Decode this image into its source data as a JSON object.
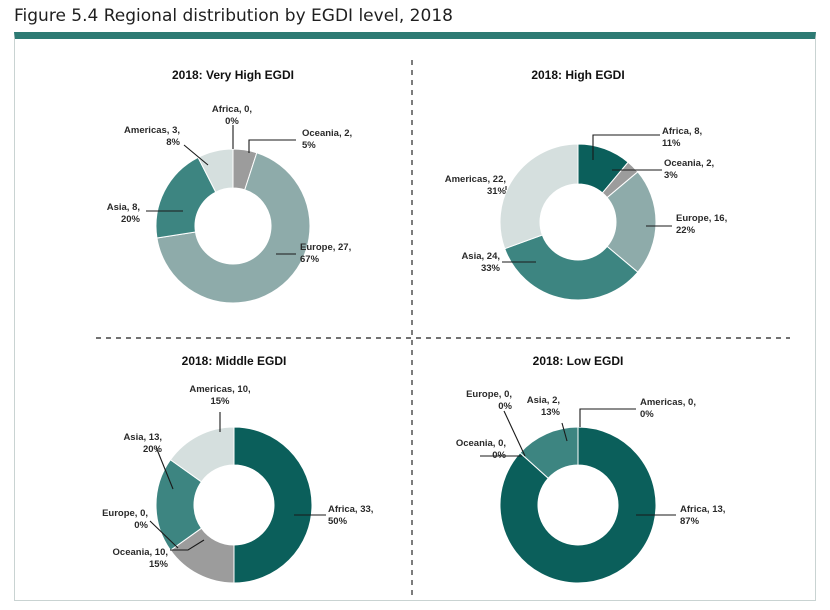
{
  "figure": {
    "title": "Figure 5.4 Regional distribution by EGDI level, 2018"
  },
  "colors": {
    "Africa": "#0b5f5b",
    "Oceania": "#9c9c9c",
    "Europe": "#8eabaa",
    "Asia": "#3d8581",
    "Americas": "#d5dfde",
    "frame_accent": "#2d7a73"
  },
  "chart_data": [
    {
      "type": "pie",
      "variant": "donut",
      "title": "2018: Very High EGDI",
      "order": [
        "Africa",
        "Oceania",
        "Europe",
        "Asia",
        "Americas"
      ],
      "categories": [
        "Africa",
        "Oceania",
        "Europe",
        "Asia",
        "Americas"
      ],
      "values": [
        0,
        2,
        27,
        8,
        3
      ],
      "labels": [
        {
          "name": "Africa",
          "line1": "Africa, 0,",
          "line2": "0%"
        },
        {
          "name": "Oceania",
          "line1": "Oceania, 2,",
          "line2": "5%"
        },
        {
          "name": "Europe",
          "line1": "Europe, 27,",
          "line2": "67%"
        },
        {
          "name": "Asia",
          "line1": "Asia, 8,",
          "line2": "20%"
        },
        {
          "name": "Americas",
          "line1": "Americas, 3,",
          "line2": "8%"
        }
      ]
    },
    {
      "type": "pie",
      "variant": "donut",
      "title": "2018: High EGDI",
      "categories": [
        "Africa",
        "Oceania",
        "Europe",
        "Asia",
        "Americas"
      ],
      "values": [
        8,
        2,
        16,
        24,
        22
      ],
      "labels": [
        {
          "name": "Africa",
          "line1": "Africa, 8,",
          "line2": "11%"
        },
        {
          "name": "Oceania",
          "line1": "Oceania, 2,",
          "line2": "3%"
        },
        {
          "name": "Europe",
          "line1": "Europe, 16,",
          "line2": "22%"
        },
        {
          "name": "Asia",
          "line1": "Asia, 24,",
          "line2": "33%"
        },
        {
          "name": "Americas",
          "line1": "Americas, 22,",
          "line2": "31%"
        }
      ]
    },
    {
      "type": "pie",
      "variant": "donut",
      "title": "2018: Middle EGDI",
      "categories": [
        "Africa",
        "Oceania",
        "Europe",
        "Asia",
        "Americas"
      ],
      "values": [
        33,
        10,
        0,
        13,
        10
      ],
      "labels": [
        {
          "name": "Africa",
          "line1": "Africa, 33,",
          "line2": "50%"
        },
        {
          "name": "Oceania",
          "line1": "Oceania, 10,",
          "line2": "15%"
        },
        {
          "name": "Europe",
          "line1": "Europe, 0,",
          "line2": "0%"
        },
        {
          "name": "Asia",
          "line1": "Asia, 13,",
          "line2": "20%"
        },
        {
          "name": "Americas",
          "line1": "Americas, 10,",
          "line2": "15%"
        }
      ]
    },
    {
      "type": "pie",
      "variant": "donut",
      "title": "2018:  Low EGDI",
      "categories": [
        "Africa",
        "Oceania",
        "Europe",
        "Asia",
        "Americas"
      ],
      "values": [
        13,
        0,
        0,
        2,
        0
      ],
      "labels": [
        {
          "name": "Africa",
          "line1": "Africa, 13,",
          "line2": "87%"
        },
        {
          "name": "Oceania",
          "line1": "Oceania, 0,",
          "line2": "0%"
        },
        {
          "name": "Europe",
          "line1": "Europe, 0,",
          "line2": "0%"
        },
        {
          "name": "Asia",
          "line1": "Asia, 2,",
          "line2": "13%"
        },
        {
          "name": "Americas",
          "line1": "Americas, 0,",
          "line2": "0%"
        }
      ]
    }
  ]
}
